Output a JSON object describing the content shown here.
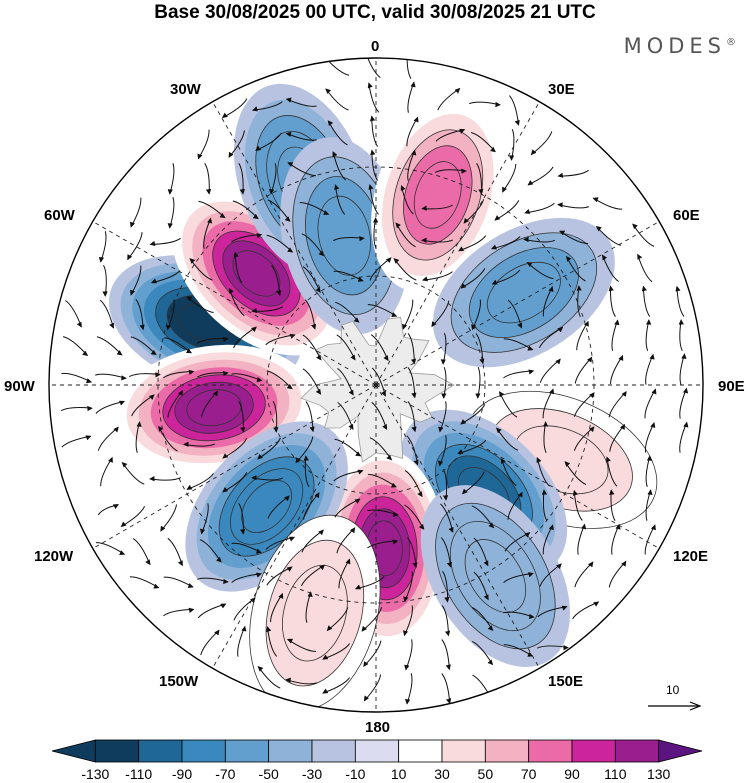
{
  "header": {
    "title": "Base 30/08/2025 00 UTC, valid 30/08/2025 21 UTC",
    "brand": "MODES",
    "brand_mark": "®"
  },
  "longitude_labels": {
    "lon_0": "0",
    "lon_30e": "30E",
    "lon_60e": "60E",
    "lon_90e": "90E",
    "lon_120e": "120E",
    "lon_150e": "150E",
    "lon_180": "180",
    "lon_150w": "150W",
    "lon_120w": "120W",
    "lon_90w": "90W",
    "lon_60w": "60W",
    "lon_30w": "30W"
  },
  "reference_vector": {
    "label": "10"
  },
  "colorbar": {
    "levels": [
      -130,
      -110,
      -90,
      -70,
      -50,
      -30,
      -10,
      10,
      30,
      50,
      70,
      90,
      110,
      130
    ],
    "labels": [
      "-130",
      "-110",
      "-90",
      "-70",
      "-50",
      "-30",
      "-10",
      "10",
      "30",
      "50",
      "70",
      "90",
      "110",
      "130"
    ],
    "colors": [
      "#0f3b5c",
      "#1e6797",
      "#3a88bd",
      "#639fce",
      "#8fb2d9",
      "#b7c3e1",
      "#dbdcef",
      "#ffffff",
      "#f9dadd",
      "#f3b2c1",
      "#ea6ba7",
      "#cc249a",
      "#9a1e8d",
      "#5c1480"
    ]
  },
  "anomaly_centers": [
    {
      "id": "low-60w-90w",
      "lon": -70,
      "lat": -40,
      "value": -140
    },
    {
      "id": "high-60w",
      "lon": -47,
      "lat": -45,
      "value": 110
    },
    {
      "id": "high-90w",
      "lon": -98,
      "lat": -45,
      "value": 125
    },
    {
      "id": "low-30w",
      "lon": -20,
      "lat": -30,
      "value": -70
    },
    {
      "id": "low-15w",
      "lon": -12,
      "lat": -48,
      "value": -60
    },
    {
      "id": "high-20e",
      "lon": 18,
      "lat": -35,
      "value": 85
    },
    {
      "id": "low-60e",
      "lon": 58,
      "lat": -42,
      "value": -55
    },
    {
      "id": "high-90e-150e",
      "lon": 112,
      "lat": -35,
      "value": 30
    },
    {
      "id": "low-130e",
      "lon": 135,
      "lat": -48,
      "value": -95
    },
    {
      "id": "high-175e",
      "lon": 177,
      "lat": -45,
      "value": 115
    },
    {
      "id": "low-135w",
      "lon": -138,
      "lat": -45,
      "value": -90
    },
    {
      "id": "low-150e",
      "lon": 148,
      "lat": -28,
      "value": -50
    },
    {
      "id": "high-160w",
      "lon": -165,
      "lat": -25,
      "value": 40
    }
  ]
}
